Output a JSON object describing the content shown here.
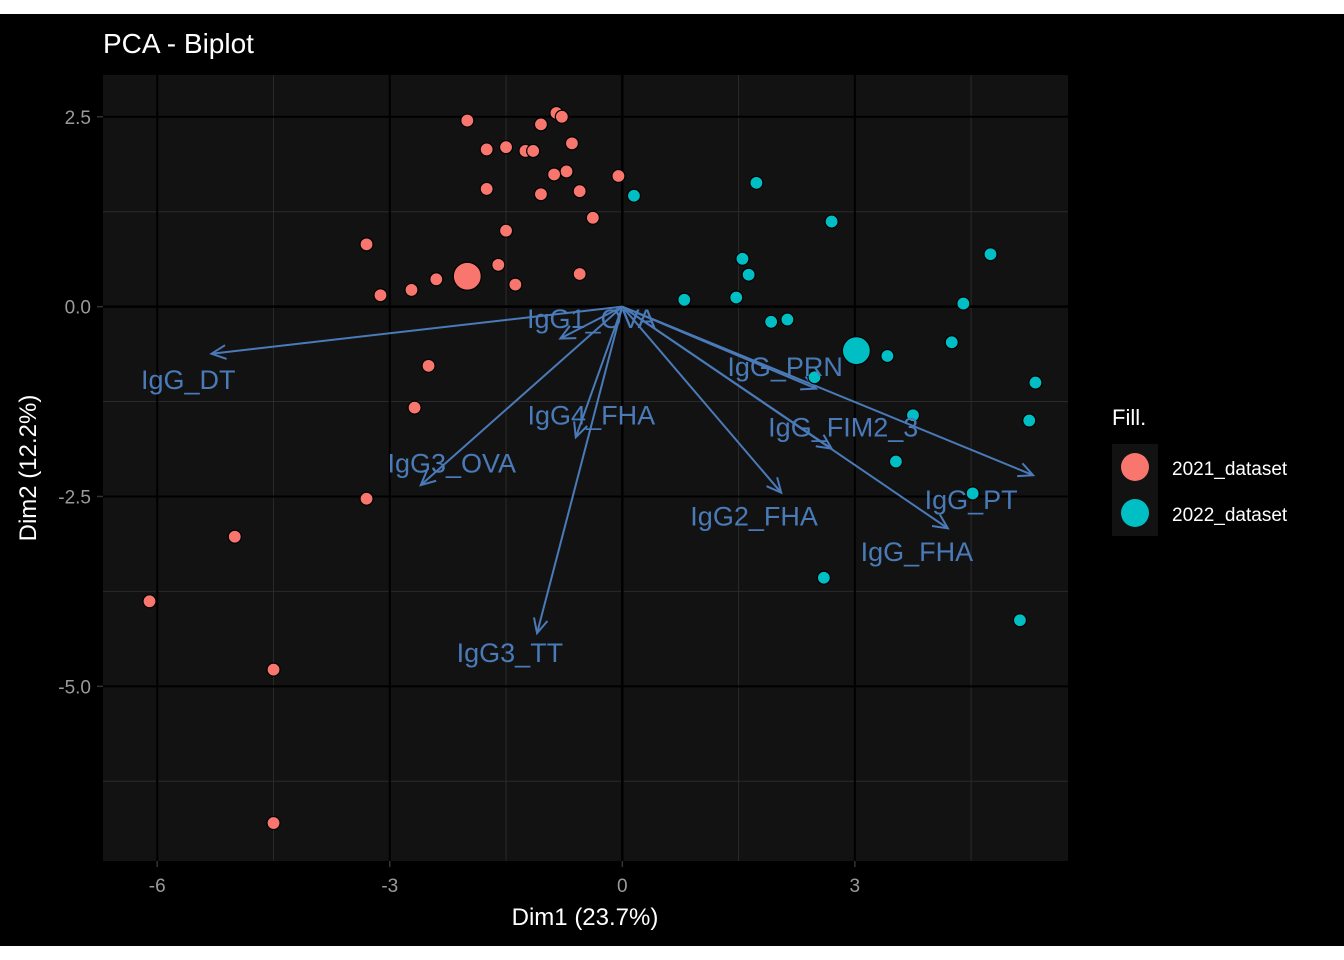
{
  "chart_data": {
    "type": "scatter",
    "title": "PCA - Biplot",
    "xlabel": "Dim1 (23.7%)",
    "ylabel": "Dim2 (12.2%)",
    "xlim": [
      -6.7,
      5.75
    ],
    "ylim": [
      -7.3,
      3.05
    ],
    "x_ticks": [
      -6,
      -3,
      0,
      3
    ],
    "x_tick_labels": [
      "-6",
      "-3",
      "0",
      "3"
    ],
    "y_ticks": [
      2.5,
      0,
      -2.5,
      -5
    ],
    "y_tick_labels": [
      "2.5",
      "0.0",
      "-2.5",
      "-5.0"
    ],
    "grid": true,
    "legend": {
      "title": "Fill.",
      "placement": "right",
      "entries": [
        {
          "label": "2021_dataset",
          "color": "#F8766D"
        },
        {
          "label": "2022_dataset",
          "color": "#00BFC4"
        }
      ]
    },
    "series": [
      {
        "name": "2021_dataset",
        "color": "#F8766D",
        "points": [
          [
            -0.85,
            2.55
          ],
          [
            -0.78,
            2.5
          ],
          [
            -1.05,
            2.4
          ],
          [
            -2.0,
            2.45
          ],
          [
            -0.65,
            2.15
          ],
          [
            -1.75,
            2.07
          ],
          [
            -1.5,
            2.1
          ],
          [
            -1.25,
            2.05
          ],
          [
            -1.15,
            2.05
          ],
          [
            -0.72,
            1.78
          ],
          [
            -0.88,
            1.74
          ],
          [
            -0.05,
            1.72
          ],
          [
            -1.75,
            1.55
          ],
          [
            -1.05,
            1.48
          ],
          [
            -0.55,
            1.52
          ],
          [
            -0.38,
            1.17
          ],
          [
            -1.5,
            1.0
          ],
          [
            -3.3,
            0.82
          ],
          [
            -1.6,
            0.55
          ],
          [
            -0.55,
            0.43
          ],
          [
            -2.4,
            0.36
          ],
          [
            -1.38,
            0.29
          ],
          [
            -2.72,
            0.22
          ],
          [
            -3.12,
            0.15
          ],
          [
            -2.5,
            -0.78
          ],
          [
            -2.68,
            -1.33
          ],
          [
            -3.3,
            -2.53
          ],
          [
            -5.0,
            -3.03
          ],
          [
            -6.1,
            -3.88
          ],
          [
            -4.5,
            -4.78
          ],
          [
            -4.5,
            -6.8
          ]
        ],
        "mean": [
          -2.0,
          0.4
        ]
      },
      {
        "name": "2022_dataset",
        "color": "#00BFC4",
        "points": [
          [
            0.15,
            1.46
          ],
          [
            1.73,
            1.63
          ],
          [
            2.7,
            1.12
          ],
          [
            1.55,
            0.63
          ],
          [
            1.63,
            0.42
          ],
          [
            4.75,
            0.69
          ],
          [
            0.8,
            0.09
          ],
          [
            1.47,
            0.12
          ],
          [
            4.4,
            0.04
          ],
          [
            1.92,
            -0.2
          ],
          [
            2.13,
            -0.17
          ],
          [
            4.25,
            -0.47
          ],
          [
            3.42,
            -0.65
          ],
          [
            2.48,
            -0.93
          ],
          [
            5.33,
            -1.0
          ],
          [
            3.75,
            -1.43
          ],
          [
            5.25,
            -1.5
          ],
          [
            3.53,
            -2.04
          ],
          [
            4.52,
            -2.46
          ],
          [
            2.6,
            -3.57
          ],
          [
            5.13,
            -4.13
          ]
        ],
        "mean": [
          3.02,
          -0.58
        ]
      }
    ],
    "variable_arrows": [
      {
        "label": "IgG_DT",
        "end": [
          -5.3,
          -0.62
        ],
        "label_at": [
          -5.6,
          -0.95
        ]
      },
      {
        "label": "IgG1_OVA",
        "end": [
          -0.8,
          -0.42
        ],
        "label_at": [
          -0.4,
          -0.15
        ]
      },
      {
        "label": "IgG4_FHA",
        "end": [
          -0.6,
          -1.72
        ],
        "label_at": [
          -0.4,
          -1.42
        ]
      },
      {
        "label": "IgG3_OVA",
        "end": [
          -2.6,
          -2.35
        ],
        "label_at": [
          -2.2,
          -2.05
        ]
      },
      {
        "label": "IgG3_TT",
        "end": [
          -1.1,
          -4.3
        ],
        "label_at": [
          -1.45,
          -4.55
        ]
      },
      {
        "label": "IgG_PRN",
        "end": [
          2.5,
          -1.08
        ],
        "label_at": [
          2.1,
          -0.78
        ]
      },
      {
        "label": "IgG_FIM2_3",
        "end": [
          2.7,
          -1.87
        ],
        "label_at": [
          2.85,
          -1.58
        ]
      },
      {
        "label": "IgG2_FHA",
        "end": [
          2.05,
          -2.45
        ],
        "label_at": [
          1.7,
          -2.75
        ]
      },
      {
        "label": "IgG_PT",
        "end": [
          5.3,
          -2.22
        ],
        "label_at": [
          4.5,
          -2.53
        ]
      },
      {
        "label": "IgG_FHA",
        "end": [
          4.2,
          -2.92
        ],
        "label_at": [
          3.8,
          -3.22
        ]
      }
    ],
    "point_color": "#F8766D",
    "arrow_color": "#4A7AB8",
    "panel_color": "#121212",
    "background_color": "#000000"
  }
}
